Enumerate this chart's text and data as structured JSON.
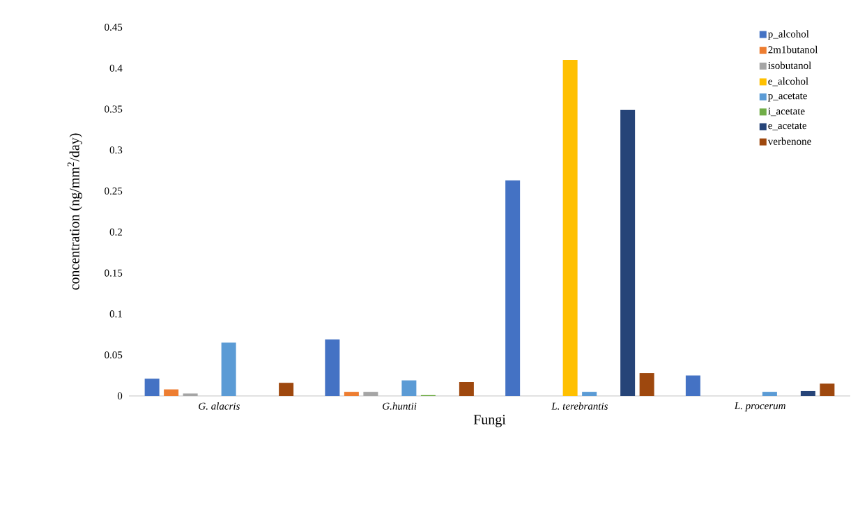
{
  "chart_data": {
    "type": "bar",
    "xlabel": "Fungi",
    "ylabel": "concentration (ng/mm$^{2}$/day)",
    "categories": [
      "G. alacris",
      "G.huntii",
      "L. terebrantis",
      "L. procerum"
    ],
    "series": [
      {
        "name": "p_alcohol",
        "color": "#4472c4",
        "values": [
          0.021,
          0.069,
          0.263,
          0.025
        ]
      },
      {
        "name": "2m1butanol",
        "color": "#ed7d31",
        "values": [
          0.008,
          0.005,
          0,
          0
        ]
      },
      {
        "name": "isobutanol",
        "color": "#a5a5a5",
        "values": [
          0.003,
          0.005,
          0,
          0
        ]
      },
      {
        "name": "e_alcohol",
        "color": "#ffc000",
        "values": [
          0,
          0,
          0.41,
          0
        ]
      },
      {
        "name": "p_acetate",
        "color": "#5b9bd5",
        "values": [
          0.065,
          0.019,
          0.005,
          0.005
        ]
      },
      {
        "name": "i_acetate",
        "color": "#70ad47",
        "values": [
          0,
          0.001,
          0,
          0
        ]
      },
      {
        "name": "e_acetate",
        "color": "#264478",
        "values": [
          0,
          0,
          0.349,
          0.006
        ]
      },
      {
        "name": "verbenone",
        "color": "#9e480e",
        "values": [
          0.016,
          0.017,
          0.028,
          0.015
        ]
      }
    ],
    "ylim": [
      0,
      0.45
    ],
    "yticks": [
      0,
      0.05,
      0.1,
      0.15,
      0.2,
      0.25,
      0.3,
      0.35,
      0.4,
      0.45
    ],
    "legend": "top right"
  }
}
